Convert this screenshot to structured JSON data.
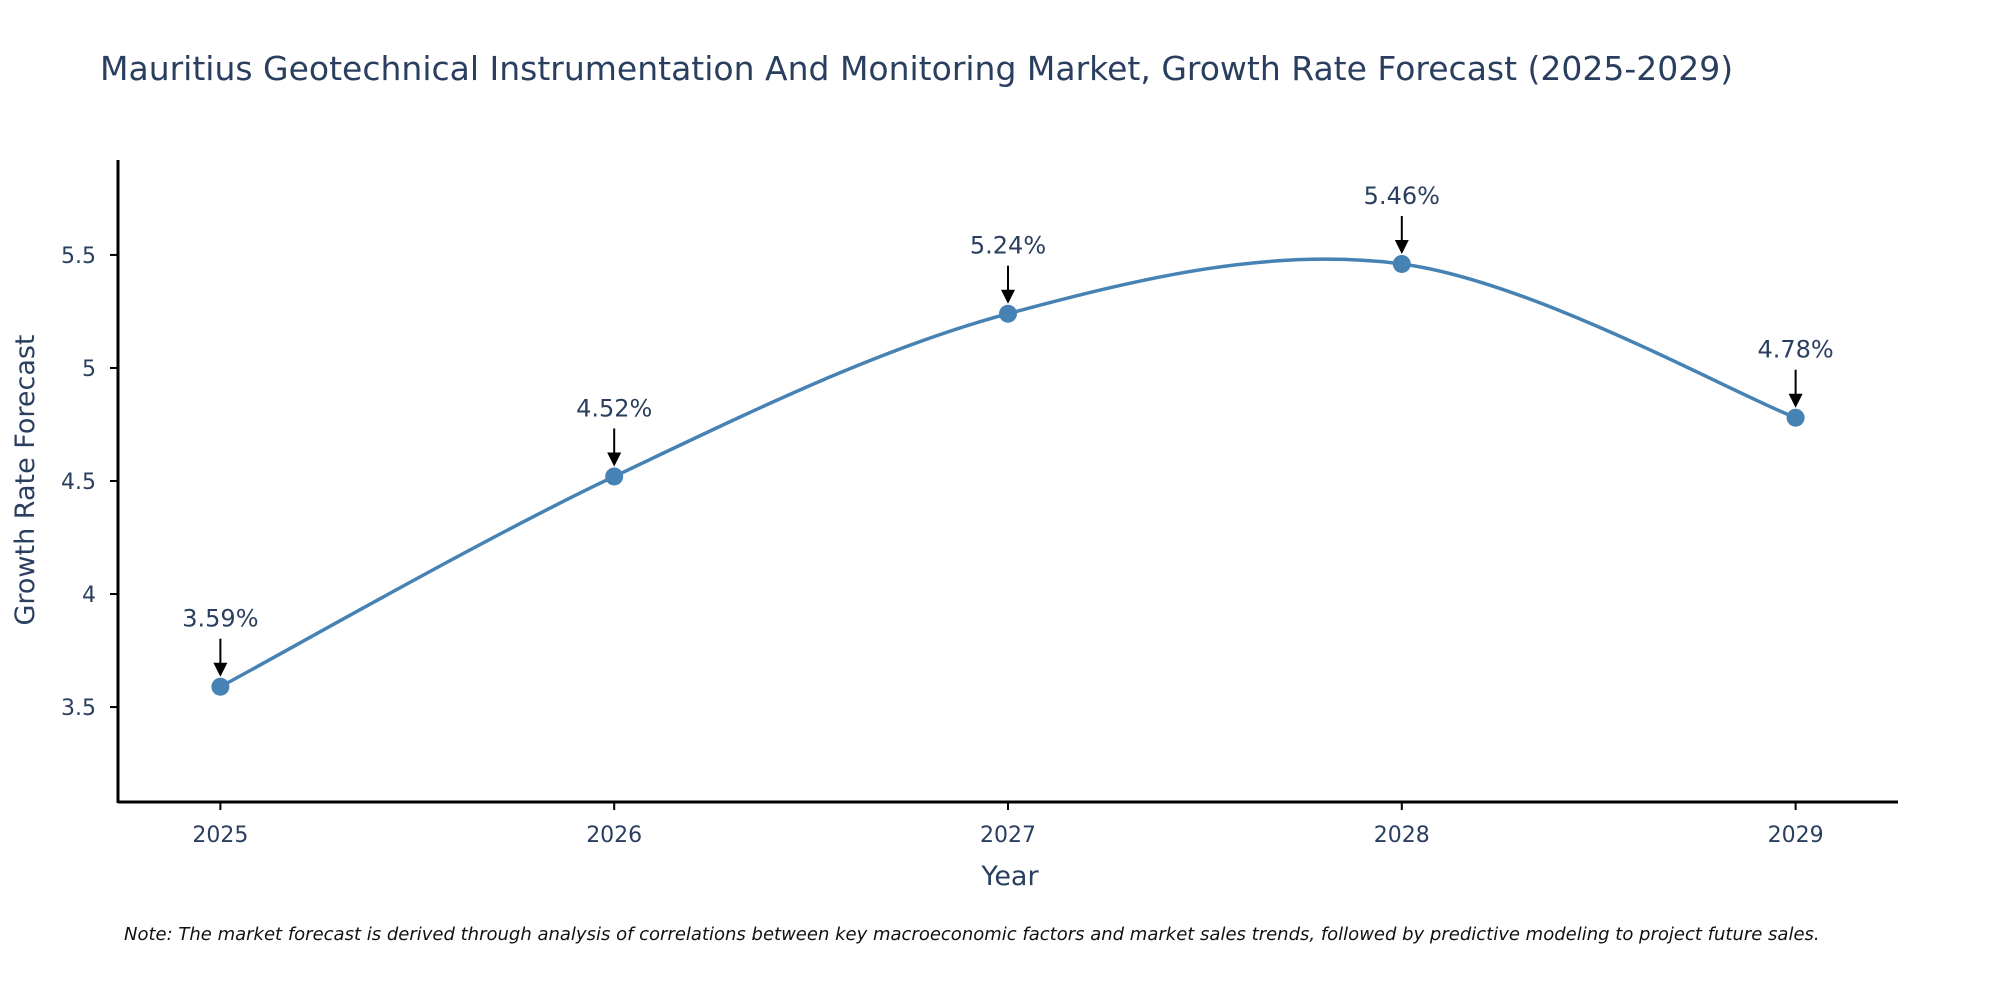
{
  "chart_data": {
    "type": "line",
    "title": "Mauritius Geotechnical Instrumentation And Monitoring Market, Growth Rate Forecast (2025-2029)",
    "xlabel": "Year",
    "ylabel": "Growth Rate Forecast",
    "categories": [
      "2025",
      "2026",
      "2027",
      "2028",
      "2029"
    ],
    "x": [
      2025,
      2026,
      2027,
      2028,
      2029
    ],
    "values": [
      3.59,
      4.52,
      5.24,
      5.46,
      4.78
    ],
    "data_labels": [
      "3.59%",
      "4.52%",
      "5.24%",
      "5.46%",
      "4.78%"
    ],
    "yticks": [
      3.5,
      4,
      4.5,
      5,
      5.5
    ],
    "ytick_labels": [
      "3.5",
      "4",
      "4.5",
      "5",
      "5.5"
    ],
    "ylim": [
      3.08,
      5.92
    ],
    "xlim": [
      2024.74,
      2029.26
    ],
    "grid": false,
    "line_shape": "spline",
    "line_color": "#4682b4",
    "marker_color": "#4682b4",
    "arrow_color": "#000000",
    "note": "Note: The market forecast is derived through analysis of correlations between key macroeconomic factors and market sales trends, followed by predictive modeling to project future sales."
  }
}
